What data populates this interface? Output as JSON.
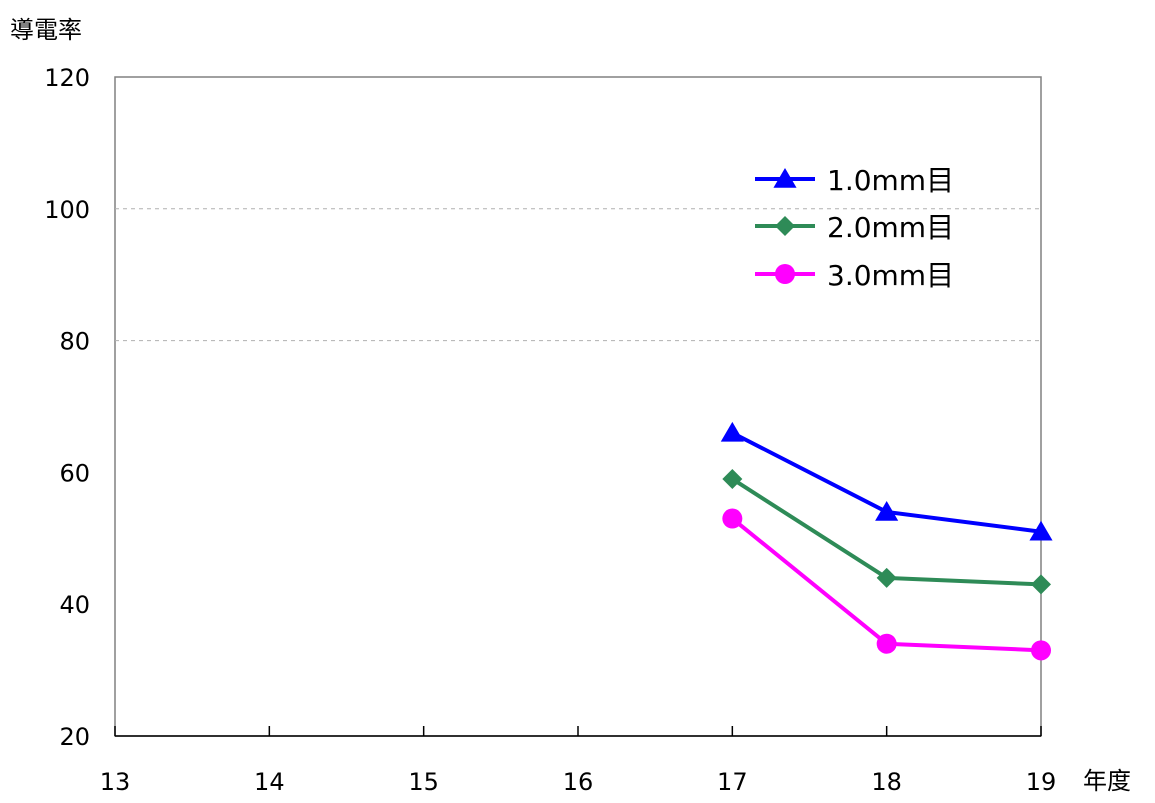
{
  "chart_data": {
    "type": "line",
    "title": "",
    "ylabel": "導電率",
    "xlabel": "年度",
    "x": [
      13,
      14,
      15,
      16,
      17,
      18,
      19
    ],
    "xlim": [
      13,
      19
    ],
    "ylim": [
      20,
      120
    ],
    "yticks": [
      "20",
      "40",
      "60",
      "80",
      "100",
      "120"
    ],
    "xticks": [
      "13",
      "14",
      "15",
      "16",
      "17",
      "18",
      "19"
    ],
    "grid": "horizontal dashed at 80 and 100",
    "legend_position": "top-right",
    "series": [
      {
        "name": "1.0mm目",
        "color": "#0000ff",
        "marker": "triangle",
        "points": [
          [
            17,
            66
          ],
          [
            18,
            54
          ],
          [
            19,
            51
          ]
        ]
      },
      {
        "name": "2.0mm目",
        "color": "#2e8b57",
        "marker": "diamond",
        "points": [
          [
            17,
            59
          ],
          [
            18,
            44
          ],
          [
            19,
            43
          ]
        ]
      },
      {
        "name": "3.0mm目",
        "color": "#ff00ff",
        "marker": "circle",
        "points": [
          [
            17,
            53
          ],
          [
            18,
            34
          ],
          [
            19,
            33
          ]
        ]
      }
    ]
  }
}
